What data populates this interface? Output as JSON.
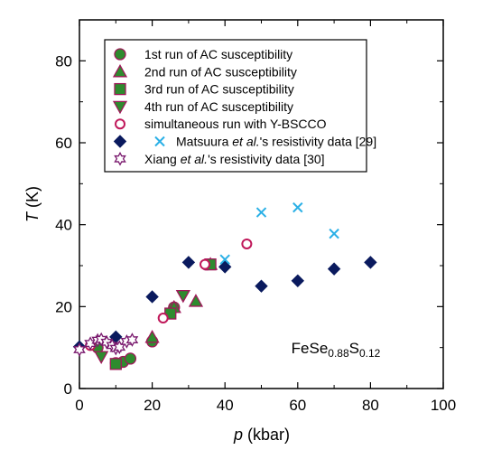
{
  "chart_data": {
    "type": "scatter",
    "xlim": [
      0,
      100
    ],
    "ylim": [
      0,
      90
    ],
    "x_ticks": [
      0,
      20,
      40,
      60,
      80,
      100
    ],
    "y_ticks": [
      0,
      20,
      40,
      60,
      80
    ],
    "xlabel": {
      "var": "p",
      "unit": " (kbar)"
    },
    "ylabel": {
      "var": "T",
      "unit": " (K)"
    },
    "grid": false,
    "legend_placement": "top-left",
    "annotation": {
      "base": "FeSe",
      "sub1": "0.88",
      "mid": "S",
      "sub2": "0.12"
    },
    "series": [
      {
        "name": "1st run of AC susceptibility",
        "marker": "circle",
        "fill": "#2e8b2e",
        "stroke": "#a0185a",
        "points": [
          [
            5,
            10
          ],
          [
            10,
            6.2
          ],
          [
            12,
            6.5
          ],
          [
            14,
            7.3
          ],
          [
            20,
            11.5
          ],
          [
            26,
            19.8
          ],
          [
            35,
            30.3
          ]
        ]
      },
      {
        "name": "2nd run of AC susceptibility",
        "marker": "triangle-up",
        "fill": "#2e8b2e",
        "stroke": "#a0185a",
        "points": [
          [
            20,
            12.5
          ],
          [
            26,
            19.8
          ],
          [
            32,
            21.3
          ],
          [
            36,
            30.3
          ]
        ]
      },
      {
        "name": "3rd run of AC susceptibility",
        "marker": "square",
        "fill": "#2e8b2e",
        "stroke": "#a0185a",
        "points": [
          [
            10,
            6
          ],
          [
            25,
            18.3
          ],
          [
            36,
            30.3
          ]
        ]
      },
      {
        "name": "4th run of AC susceptibility",
        "marker": "triangle-down",
        "fill": "#2e8b2e",
        "stroke": "#a0185a",
        "points": [
          [
            6,
            7.8
          ],
          [
            28.5,
            22.7
          ]
        ]
      },
      {
        "name": "simultaneous run with Y-BSCCO",
        "marker": "open-circle",
        "fill": "none",
        "stroke": "#c0185a",
        "points": [
          [
            3,
            10.5
          ],
          [
            23,
            17.2
          ],
          [
            34.5,
            30.3
          ],
          [
            46,
            35.3
          ]
        ]
      },
      {
        "name": "Matsuura et al.'s resistivity data [29]",
        "marker": "diamond",
        "fill": "#0a1a5e",
        "stroke": "#0a1a5e",
        "points": [
          [
            0,
            10.2
          ],
          [
            10,
            12.6
          ],
          [
            20,
            22.4
          ],
          [
            30,
            30.8
          ],
          [
            40,
            29.7
          ],
          [
            50,
            25
          ],
          [
            60,
            26.3
          ],
          [
            70,
            29.2
          ],
          [
            80,
            30.8
          ]
        ]
      },
      {
        "name": "Matsuura et al.'s resistivity data [29]",
        "marker": "cross",
        "fill": "none",
        "stroke": "#2bb0e6",
        "points": [
          [
            40,
            31.5
          ],
          [
            50,
            43
          ],
          [
            60,
            44.2
          ],
          [
            70,
            37.8
          ]
        ]
      },
      {
        "name": "Xiang et al.'s resistivity data [30]",
        "marker": "star-open",
        "fill": "none",
        "stroke": "#7a1a6e",
        "points": [
          [
            0,
            9.5
          ],
          [
            3,
            11
          ],
          [
            5,
            11.8
          ],
          [
            6,
            12
          ],
          [
            7.5,
            11.3
          ],
          [
            9,
            10.5
          ],
          [
            10,
            9.8
          ],
          [
            11,
            10.1
          ],
          [
            13,
            11.5
          ],
          [
            14.5,
            11.9
          ]
        ]
      }
    ],
    "legend": [
      {
        "label": "1st run of AC susceptibility",
        "markers": [
          "circle"
        ]
      },
      {
        "label": "2nd run of AC susceptibility",
        "markers": [
          "triangle-up"
        ]
      },
      {
        "label": "3rd run of AC susceptibility",
        "markers": [
          "square"
        ]
      },
      {
        "label": "4th run of AC susceptibility",
        "markers": [
          "triangle-down"
        ]
      },
      {
        "label": "simultaneous run with Y-BSCCO",
        "markers": [
          "open-circle"
        ]
      },
      {
        "label": "Matsuura et al.'s resistivity data [29]",
        "parts": [
          "Matsuura ",
          "et al.",
          "'s resistivity data [29]"
        ],
        "markers": [
          "diamond",
          "cross"
        ]
      },
      {
        "label": "Xiang et al.'s resistivity data [30]",
        "parts": [
          "Xiang ",
          "et al.",
          "'s resistivity data [30]"
        ],
        "markers": [
          "star-open"
        ]
      }
    ]
  }
}
